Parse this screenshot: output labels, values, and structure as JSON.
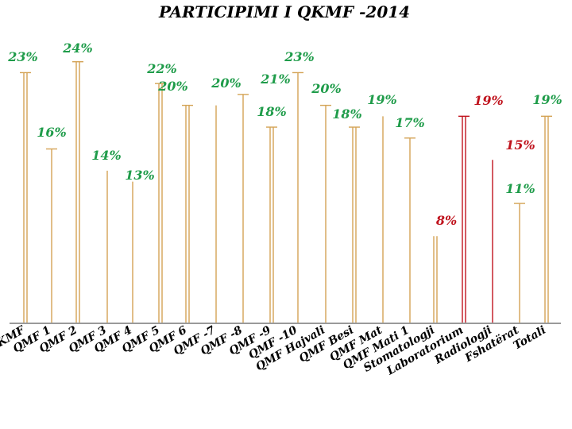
{
  "colors": {
    "stem": "#d4a355",
    "axis": "#9a9a9a",
    "label_green": "#1f9c4a",
    "label_red": "#c0141e"
  },
  "chart_data": {
    "type": "bar",
    "title": "PARTICIPIMI I QKMF -2014",
    "xlabel": "",
    "ylabel": "",
    "ylim": [
      0,
      25
    ],
    "grid": false,
    "legend": "none",
    "categories": [
      "QKMF",
      "QMF 1",
      "QMF 2",
      "QMF 3",
      "QMF 4",
      "QMF 5",
      "QMF 6",
      "QMF -7",
      "QMF -8",
      "QMF -9",
      "QMF -10",
      "QMF Hajvali",
      "QMF Besi",
      "QMF Mat",
      "QMF Mati 1",
      "Stomatologji",
      "Laboratorium",
      "Radiologji",
      "Fshatërat",
      "Totali"
    ],
    "series": [
      {
        "values": [
          23,
          16,
          24,
          14,
          13,
          22,
          20,
          20,
          21,
          18,
          23,
          20,
          18,
          19,
          17,
          8,
          19,
          15,
          11,
          19
        ],
        "labels": [
          "23%",
          "16%",
          "24%",
          "14%",
          "13%",
          "22%",
          "20%",
          "20%",
          "21%",
          "18%",
          "23%",
          "20%",
          "18%",
          "19%",
          "17%",
          "8%",
          "19%",
          "15%",
          "11%",
          "19%"
        ]
      }
    ]
  }
}
